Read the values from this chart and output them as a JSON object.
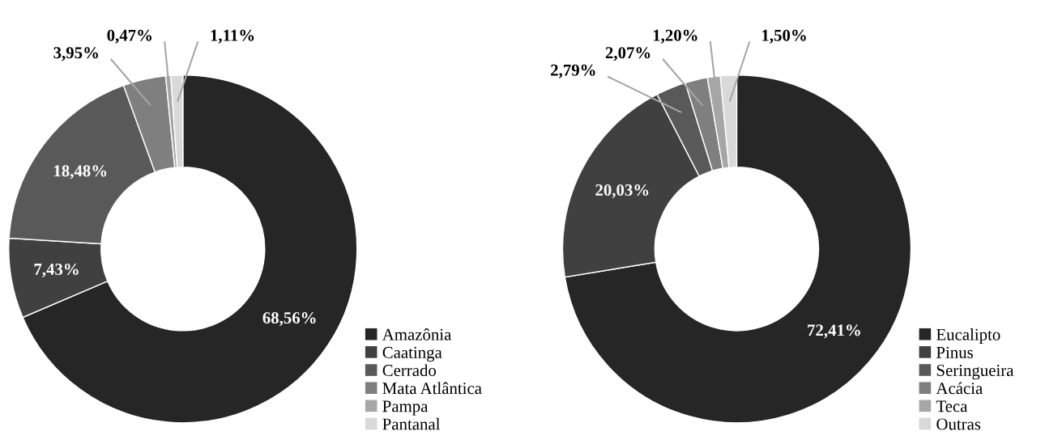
{
  "chart_data": [
    {
      "type": "donut",
      "categories": [
        "Amazônia",
        "Caatinga",
        "Cerrado",
        "Mata Atlântica",
        "Pampa",
        "Pantanal"
      ],
      "values": [
        68.56,
        7.43,
        18.48,
        3.95,
        0.47,
        1.11
      ],
      "colors": [
        "#262626",
        "#404040",
        "#595959",
        "#7f7f7f",
        "#a6a6a6",
        "#d9d9d9"
      ],
      "value_labels": [
        "68,56%",
        "7,43%",
        "18,48%",
        "3,95%",
        "0,47%",
        "1,11%"
      ],
      "legend": "bottom right"
    },
    {
      "type": "donut",
      "categories": [
        "Eucalipto",
        "Pinus",
        "Seringueira",
        "Acácia",
        "Teca",
        "Outras"
      ],
      "values": [
        72.41,
        20.03,
        2.79,
        2.07,
        1.2,
        1.5
      ],
      "colors": [
        "#262626",
        "#404040",
        "#595959",
        "#7f7f7f",
        "#a6a6a6",
        "#d9d9d9"
      ],
      "value_labels": [
        "72,41%",
        "20,03%",
        "2,79%",
        "2,07%",
        "1,20%",
        "1,50%"
      ],
      "legend": "bottom right"
    }
  ]
}
